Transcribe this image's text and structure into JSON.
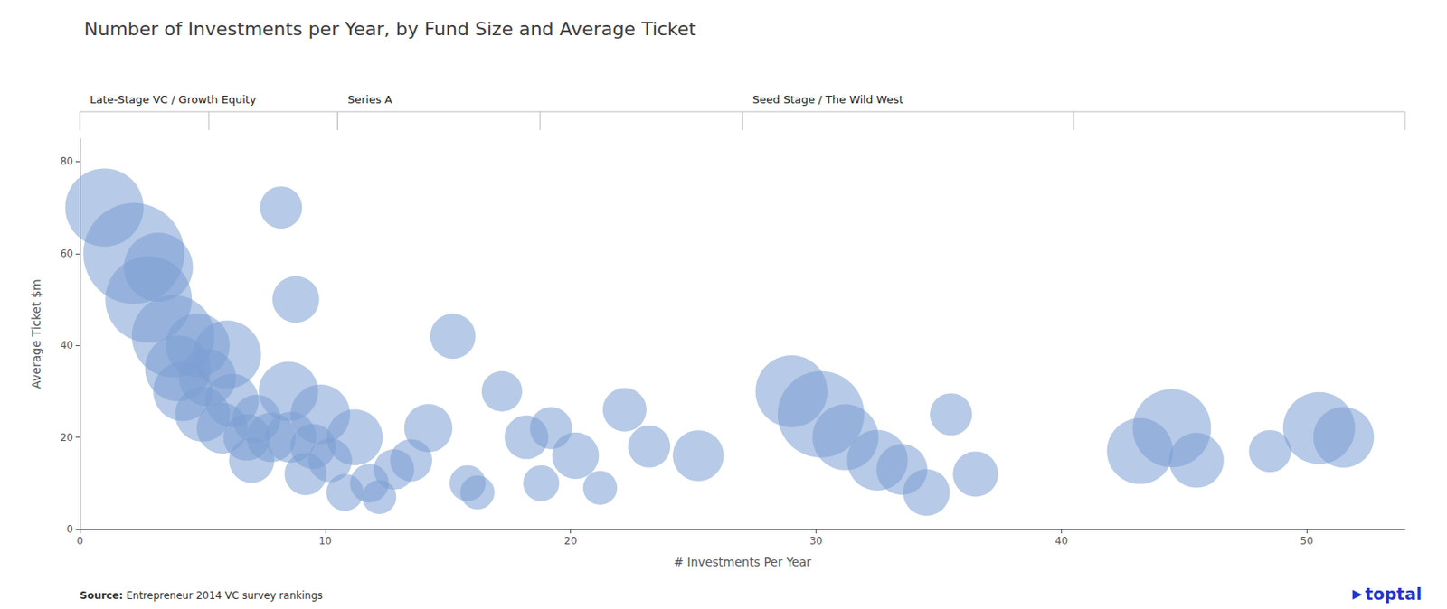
{
  "chart_data": {
    "type": "scatter",
    "title": "Number of Investments per Year, by Fund Size and Average Ticket",
    "xlabel": "# Investments Per Year",
    "ylabel": "Average Ticket $m",
    "x": [
      1.0,
      2.2,
      2.8,
      3.2,
      3.8,
      4.0,
      4.2,
      4.8,
      5.0,
      5.2,
      5.8,
      6.2,
      6.0,
      6.8,
      7.2,
      7.0,
      7.8,
      8.2,
      8.5,
      8.8,
      8.6,
      9.2,
      9.5,
      9.8,
      10.2,
      10.8,
      11.2,
      11.8,
      12.2,
      12.8,
      13.5,
      14.2,
      15.2,
      15.8,
      16.2,
      17.2,
      18.2,
      18.8,
      19.2,
      20.2,
      21.2,
      22.2,
      23.2,
      25.2,
      29.0,
      30.2,
      31.2,
      32.5,
      33.5,
      34.5,
      35.5,
      36.5,
      43.2,
      44.5,
      45.5,
      48.5,
      50.5,
      51.5
    ],
    "values": [
      70,
      60,
      50,
      57,
      42,
      35,
      30,
      40,
      25,
      33,
      22,
      28,
      38,
      20,
      24,
      15,
      20,
      70,
      30,
      50,
      20,
      12,
      18,
      25,
      15,
      8,
      20,
      10,
      7,
      13,
      15,
      22,
      42,
      10,
      8,
      30,
      20,
      10,
      22,
      16,
      9,
      26,
      18,
      16,
      30,
      25,
      20,
      15,
      13,
      8,
      25,
      12,
      17,
      22,
      15,
      17,
      22,
      20
    ],
    "sizes": [
      4500,
      7500,
      5500,
      3500,
      5000,
      3200,
      2600,
      3000,
      2200,
      2400,
      1900,
      2100,
      3400,
      1600,
      1700,
      1500,
      1800,
      1300,
      2600,
      1600,
      1900,
      1300,
      1500,
      2600,
      1400,
      1000,
      2300,
      1100,
      850,
      1200,
      1300,
      1700,
      1500,
      950,
      850,
      1200,
      1400,
      950,
      1300,
      1600,
      850,
      1400,
      1300,
      1900,
      3800,
      5500,
      3200,
      2700,
      1900,
      1600,
      1300,
      1500,
      3200,
      4500,
      2200,
      1300,
      3800,
      2700
    ],
    "color": "#7b9fd4",
    "xlim": [
      0,
      54
    ],
    "ylim": [
      0,
      85
    ],
    "xticks": [
      0,
      10,
      20,
      30,
      40,
      50
    ],
    "yticks": [
      0,
      20,
      40,
      60,
      80
    ],
    "grid": false,
    "sections": [
      {
        "label": "Late-Stage VC / Growth Equity",
        "x_start": 0,
        "x_end": 10.5
      },
      {
        "label": "Series A",
        "x_start": 10.5,
        "x_end": 27
      },
      {
        "label": "Seed Stage / The Wild West",
        "x_start": 27,
        "x_end": 54
      }
    ],
    "bracket_color": "#bbbbbb",
    "source_bold": "Source:",
    "source_normal": " Entrepreneur 2014 VC survey rankings",
    "logo_mark": "▶",
    "logo": "toptal",
    "logo_color": "#2233cc"
  }
}
